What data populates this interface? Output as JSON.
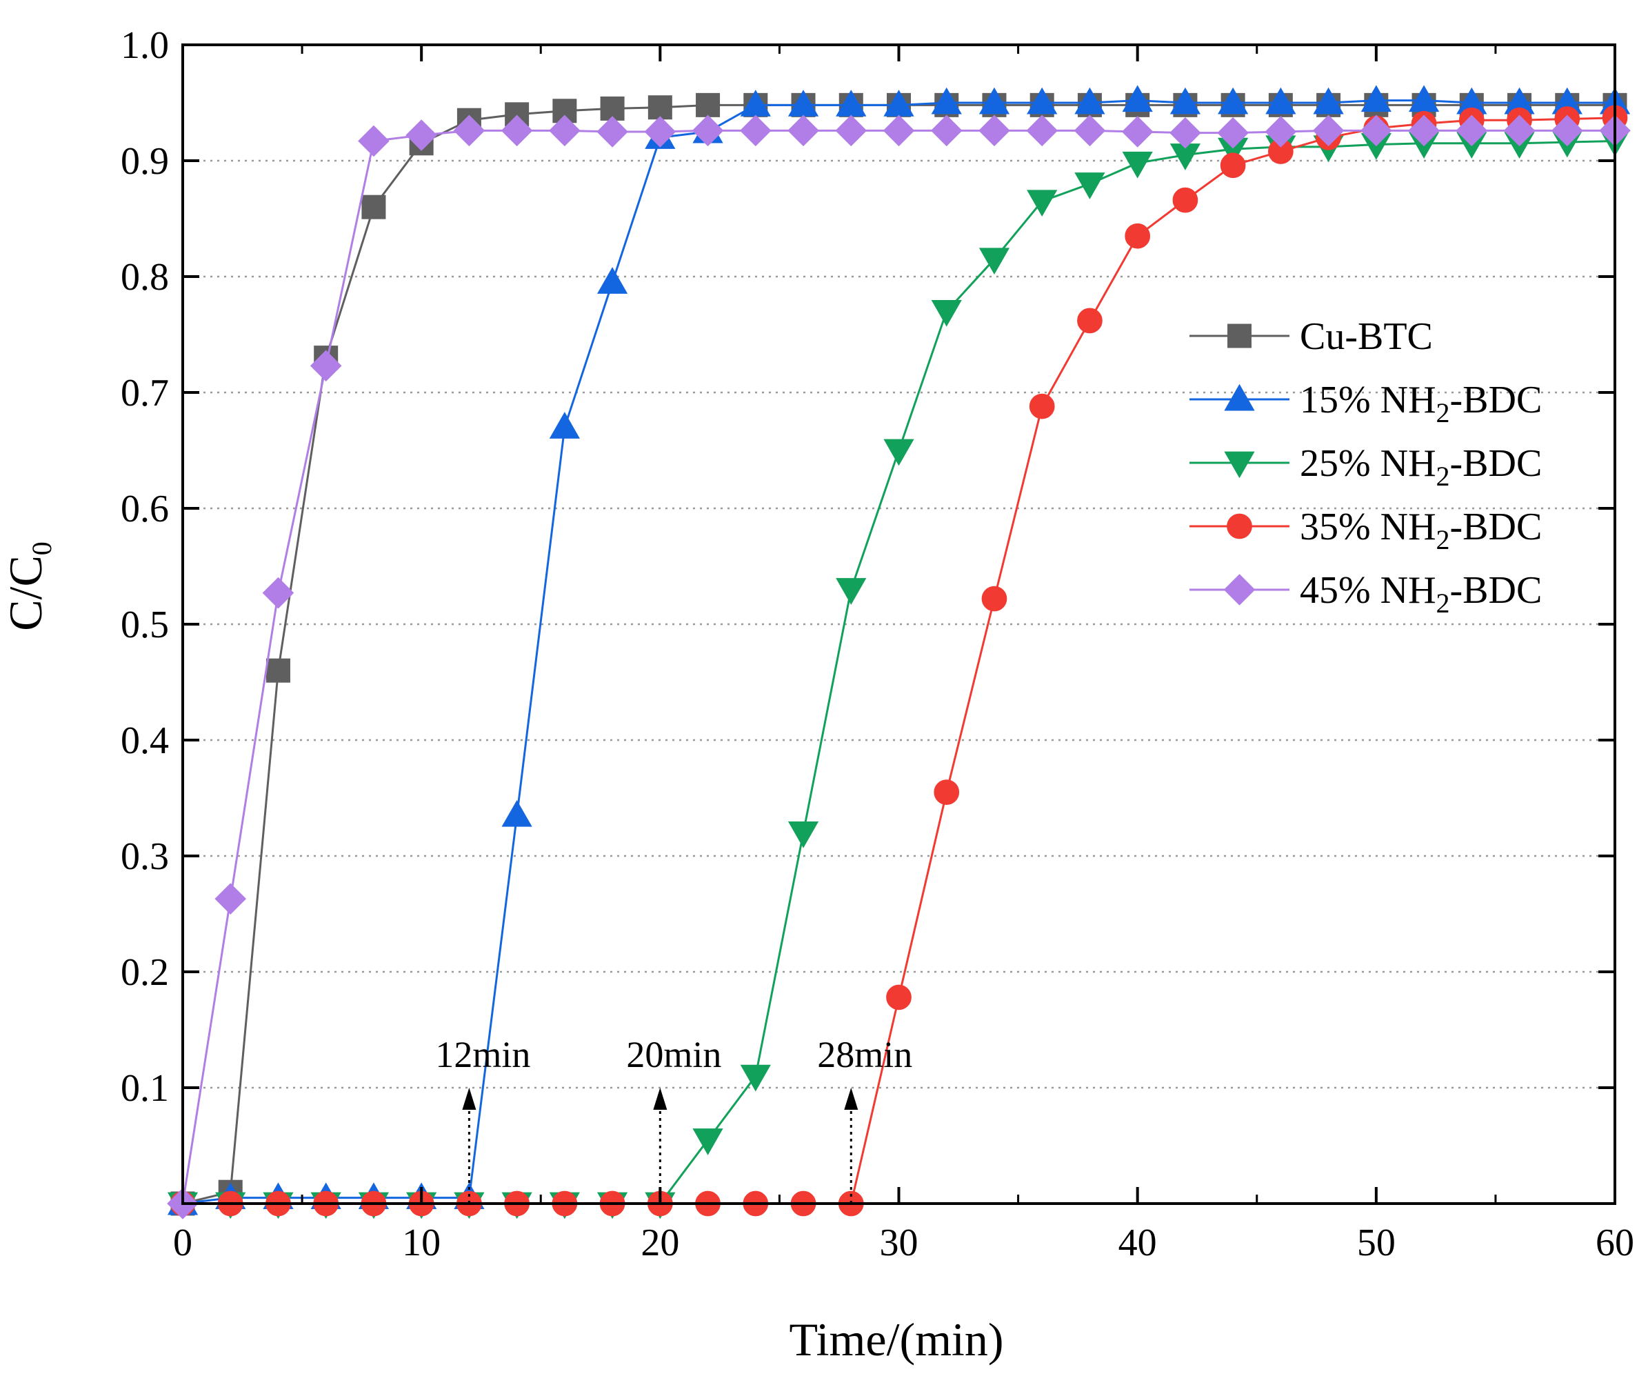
{
  "chart_data": {
    "type": "line",
    "title": "",
    "xlabel": "Time/(min)",
    "ylabel": "C/C",
    "ylabel_sub": "0",
    "xlim": [
      0,
      60
    ],
    "ylim": [
      0,
      1.0
    ],
    "xticks": [
      0,
      10,
      20,
      30,
      40,
      50,
      60
    ],
    "xtick_labels": [
      "0",
      "10",
      "20",
      "30",
      "40",
      "50",
      "60"
    ],
    "yticks": [
      0.1,
      0.2,
      0.3,
      0.4,
      0.5,
      0.6,
      0.7,
      0.8,
      0.9,
      1.0
    ],
    "ytick_labels": [
      "0.1",
      "0.2",
      "0.3",
      "0.4",
      "0.5",
      "0.6",
      "0.7",
      "0.8",
      "0.9",
      "1.0"
    ],
    "grid": "horizontal-dotted",
    "legend_position": "center-right",
    "series": [
      {
        "name": "Cu-BTC",
        "label_main": "Cu-BTC",
        "label_sub": "",
        "label_tail": "",
        "color": "#5f5f5f",
        "marker": "square",
        "x": [
          0,
          2,
          4,
          6,
          8,
          10,
          12,
          14,
          16,
          18,
          20,
          22,
          24,
          26,
          28,
          30,
          32,
          34,
          36,
          38,
          40,
          42,
          44,
          46,
          48,
          50,
          52,
          54,
          56,
          58,
          60
        ],
        "y": [
          0,
          0.01,
          0.46,
          0.73,
          0.86,
          0.915,
          0.935,
          0.94,
          0.943,
          0.945,
          0.946,
          0.948,
          0.948,
          0.948,
          0.948,
          0.948,
          0.948,
          0.948,
          0.948,
          0.948,
          0.948,
          0.948,
          0.948,
          0.948,
          0.948,
          0.948,
          0.948,
          0.948,
          0.948,
          0.948,
          0.948
        ]
      },
      {
        "name": "15% NH2-BDC",
        "label_main": "15% NH",
        "label_sub": "2",
        "label_tail": "-BDC",
        "color": "#1466e0",
        "marker": "triangle-up",
        "x": [
          0,
          2,
          4,
          6,
          8,
          10,
          12,
          14,
          16,
          18,
          20,
          22,
          24,
          26,
          28,
          30,
          32,
          34,
          36,
          38,
          40,
          42,
          44,
          46,
          48,
          50,
          52,
          54,
          56,
          58,
          60
        ],
        "y": [
          0,
          0.005,
          0.005,
          0.005,
          0.005,
          0.005,
          0.005,
          0.335,
          0.67,
          0.795,
          0.92,
          0.925,
          0.948,
          0.948,
          0.948,
          0.948,
          0.95,
          0.95,
          0.95,
          0.95,
          0.952,
          0.95,
          0.95,
          0.95,
          0.95,
          0.952,
          0.952,
          0.95,
          0.95,
          0.95,
          0.95
        ]
      },
      {
        "name": "25% NH2-BDC",
        "label_main": "25% NH",
        "label_sub": "2",
        "label_tail": "-BDC",
        "color": "#12a15a",
        "marker": "triangle-down",
        "x": [
          0,
          2,
          4,
          6,
          8,
          10,
          12,
          14,
          16,
          18,
          20,
          22,
          24,
          26,
          28,
          30,
          32,
          34,
          36,
          38,
          40,
          42,
          44,
          46,
          48,
          50,
          52,
          54,
          56,
          58,
          60
        ],
        "y": [
          0,
          0,
          0,
          0,
          0,
          0,
          0,
          0,
          0,
          0,
          0,
          0.055,
          0.11,
          0.32,
          0.53,
          0.65,
          0.77,
          0.815,
          0.865,
          0.88,
          0.898,
          0.905,
          0.91,
          0.912,
          0.912,
          0.914,
          0.915,
          0.915,
          0.915,
          0.916,
          0.917
        ]
      },
      {
        "name": "35% NH2-BDC",
        "label_main": "35% NH",
        "label_sub": "2",
        "label_tail": "-BDC",
        "color": "#f03a32",
        "marker": "circle",
        "x": [
          0,
          2,
          4,
          6,
          8,
          10,
          12,
          14,
          16,
          18,
          20,
          22,
          24,
          26,
          28,
          30,
          32,
          34,
          36,
          38,
          40,
          42,
          44,
          46,
          48,
          50,
          52,
          54,
          56,
          58,
          60
        ],
        "y": [
          0,
          0,
          0,
          0,
          0,
          0,
          0,
          0,
          0,
          0,
          0,
          0,
          0,
          0,
          0,
          0.178,
          0.355,
          0.522,
          0.688,
          0.762,
          0.835,
          0.866,
          0.896,
          0.908,
          0.92,
          0.928,
          0.932,
          0.935,
          0.935,
          0.936,
          0.937
        ]
      },
      {
        "name": "45% NH2-BDC",
        "label_main": "45% NH",
        "label_sub": "2",
        "label_tail": "-BDC",
        "color": "#b07ee6",
        "marker": "diamond",
        "x": [
          0,
          2,
          4,
          6,
          8,
          10,
          12,
          14,
          16,
          18,
          20,
          22,
          24,
          26,
          28,
          30,
          32,
          34,
          36,
          38,
          40,
          42,
          44,
          46,
          48,
          50,
          52,
          54,
          56,
          58,
          60
        ],
        "y": [
          0,
          0.263,
          0.527,
          0.723,
          0.917,
          0.922,
          0.926,
          0.926,
          0.926,
          0.925,
          0.925,
          0.926,
          0.926,
          0.926,
          0.926,
          0.926,
          0.926,
          0.926,
          0.926,
          0.926,
          0.925,
          0.924,
          0.924,
          0.925,
          0.926,
          0.926,
          0.926,
          0.926,
          0.926,
          0.926,
          0.926
        ]
      }
    ],
    "annotations": [
      {
        "label": "12min",
        "x": 12,
        "arrow_top": 0.1
      },
      {
        "label": "20min",
        "x": 20,
        "arrow_top": 0.1
      },
      {
        "label": "28min",
        "x": 28,
        "arrow_top": 0.1
      }
    ]
  }
}
